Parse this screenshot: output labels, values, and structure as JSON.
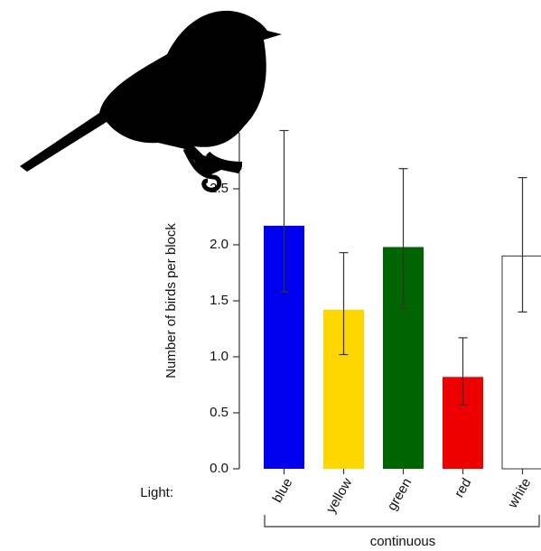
{
  "chart_data": {
    "type": "bar",
    "y_label": "Number of birds per block",
    "x_prefix": "Light:",
    "group_label": "continuous",
    "categories": [
      "blue",
      "yellow",
      "green",
      "red",
      "white"
    ],
    "values": [
      2.17,
      1.42,
      1.98,
      0.82,
      1.9
    ],
    "ci_low": [
      1.58,
      1.02,
      1.43,
      0.57,
      1.4
    ],
    "ci_high": [
      3.02,
      1.93,
      2.68,
      1.17,
      2.6
    ],
    "colors": [
      "#0000ee",
      "#ffd700",
      "#006400",
      "#ee0000",
      "#ffffff"
    ],
    "ylim": [
      0,
      3
    ],
    "yticks": [
      {
        "value": 0,
        "label": "0.0"
      },
      {
        "value": 0.5,
        "label": "0.5"
      },
      {
        "value": 1,
        "label": "1.0"
      },
      {
        "value": 1.5,
        "label": "1.5"
      },
      {
        "value": 2,
        "label": "2.0"
      },
      {
        "value": 2.5,
        "label": "2.5"
      },
      {
        "value": 3,
        "label": "3.0"
      }
    ]
  }
}
